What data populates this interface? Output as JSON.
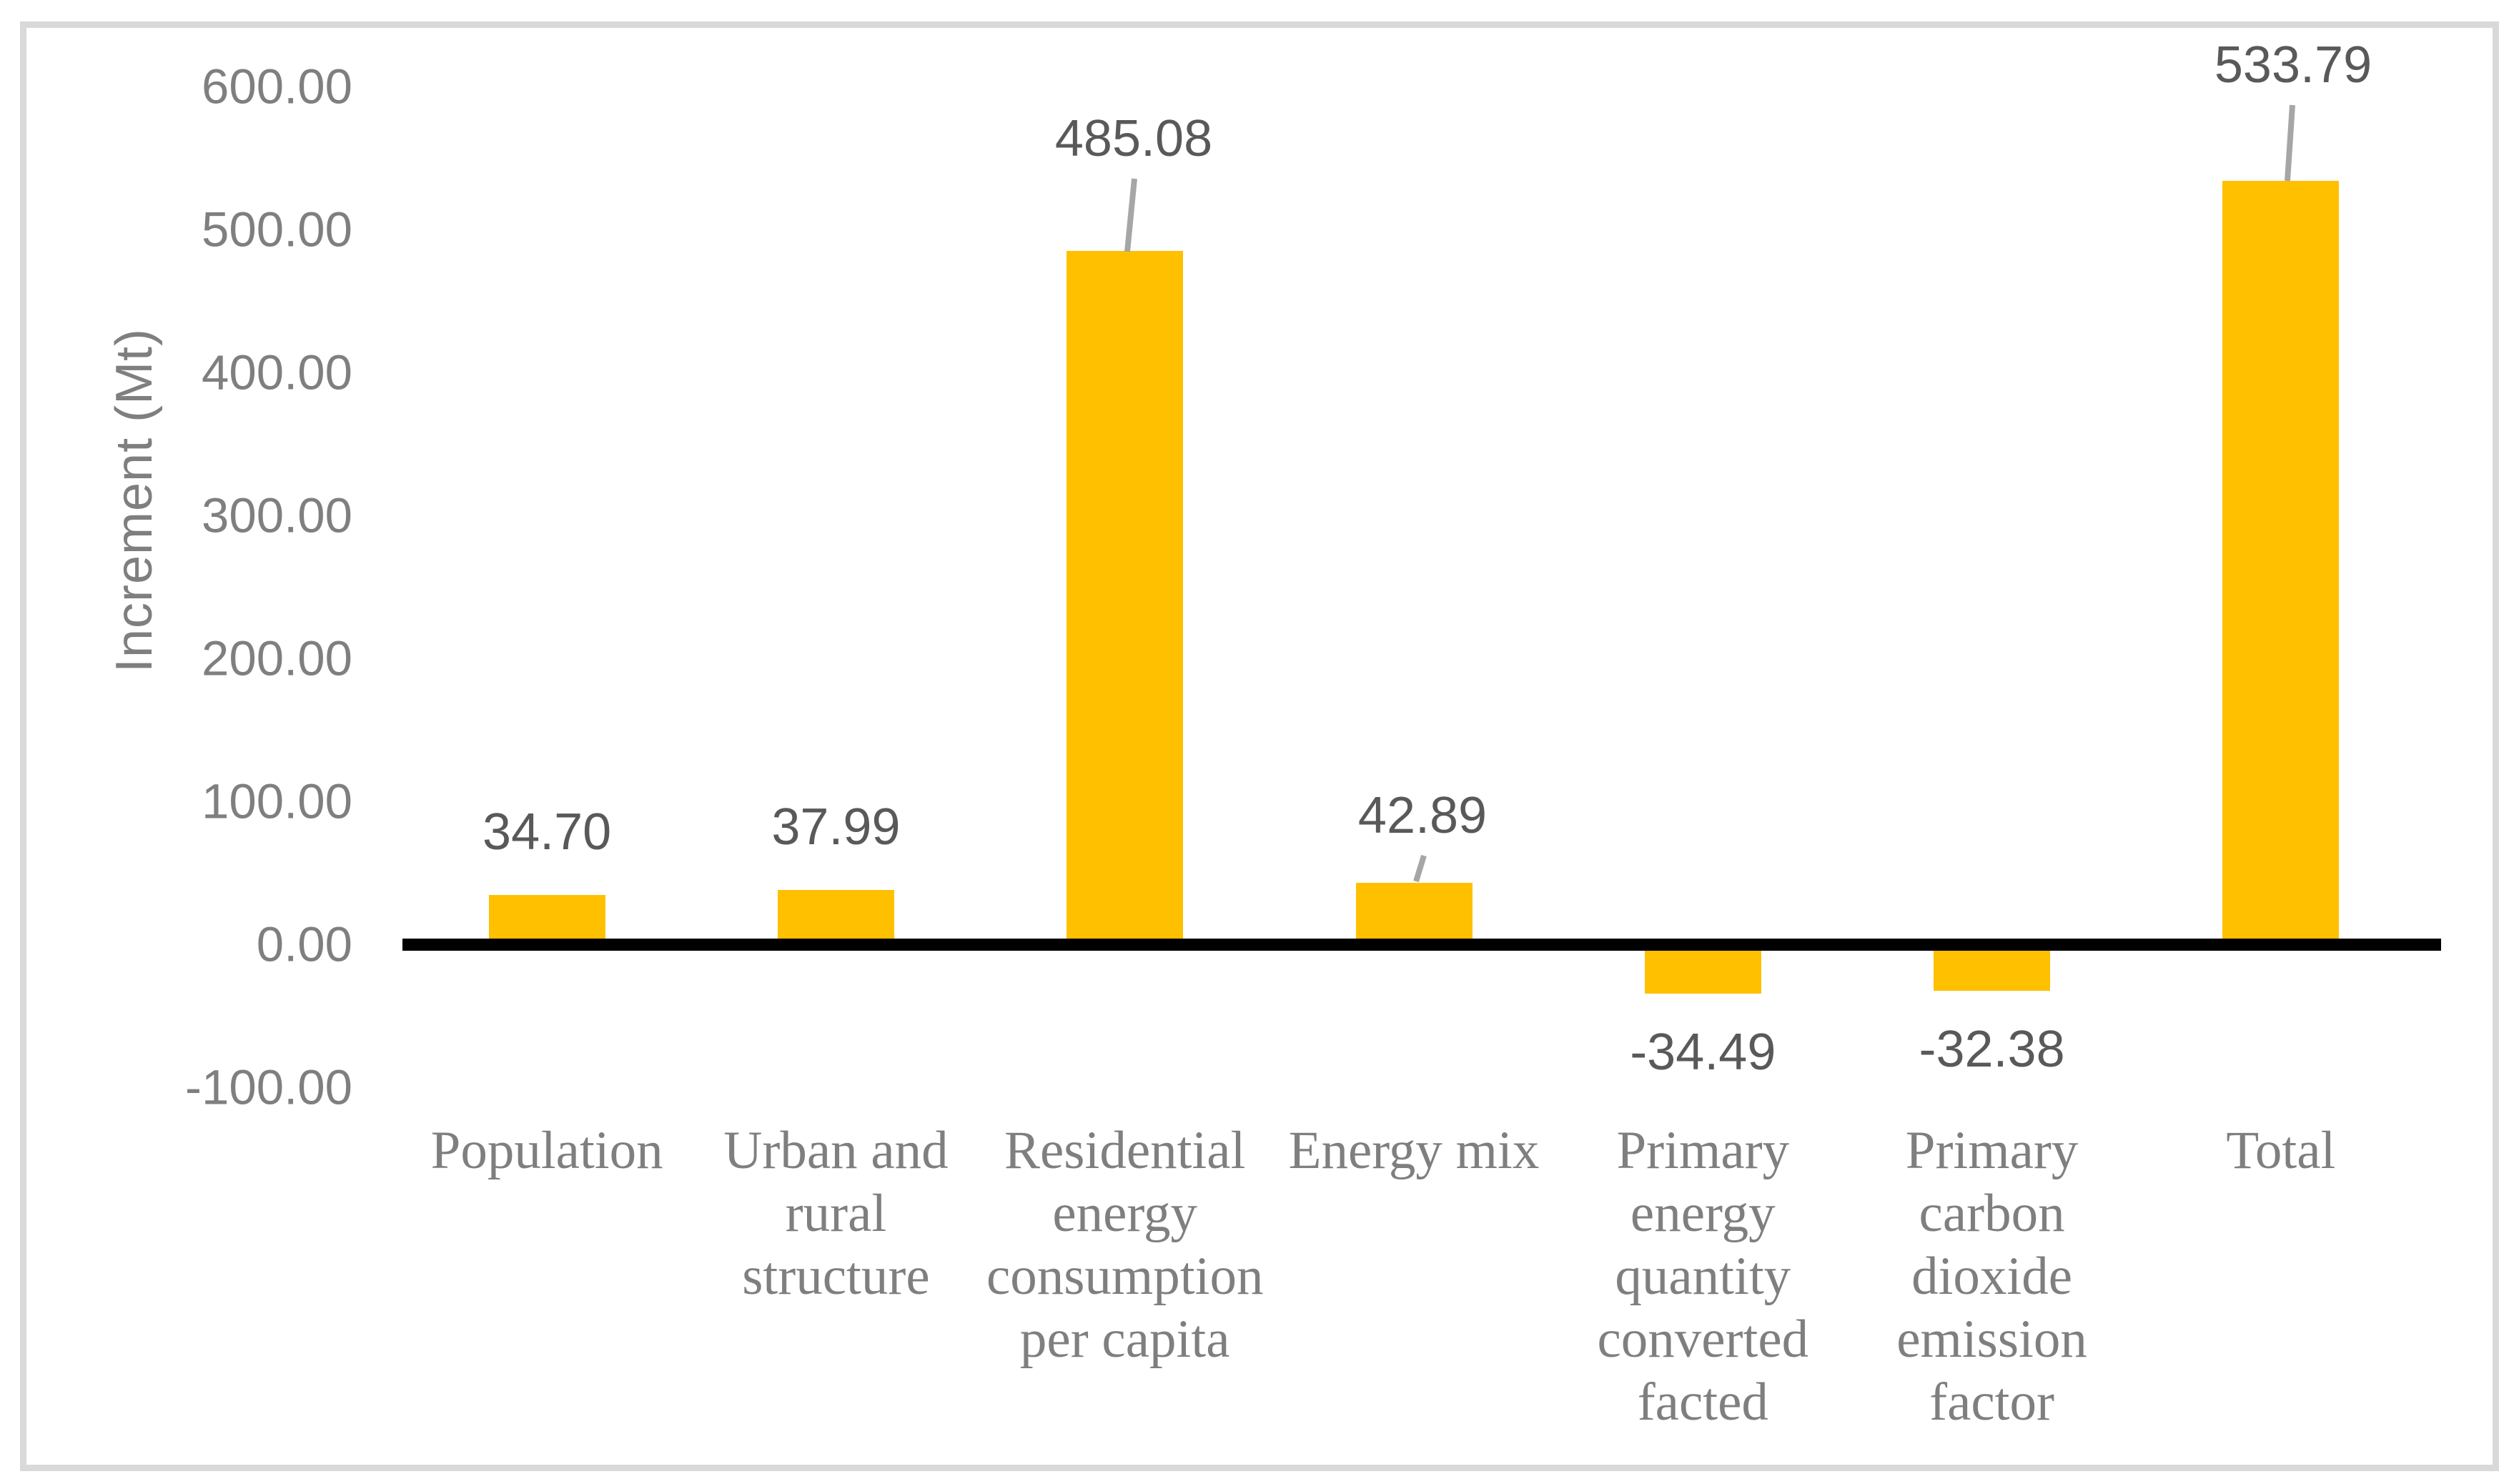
{
  "chart_data": {
    "type": "bar",
    "title": "",
    "xlabel": "",
    "ylabel": "Increment (Mt)",
    "categories": [
      "Population",
      "Urban and rural structure",
      "Residential energy consumption per capita",
      "Energy mix",
      "Primary energy quantity converted facted",
      "Primary carbon dioxide emission factor",
      "Total"
    ],
    "category_label_lines": [
      [
        "Population"
      ],
      [
        "Urban and",
        "rural",
        "structure"
      ],
      [
        "Residential",
        "energy",
        "consumption",
        "per capita"
      ],
      [
        "Energy mix"
      ],
      [
        "Primary",
        "energy",
        "quantity",
        "converted",
        "facted"
      ],
      [
        "Primary",
        "carbon",
        "dioxide",
        "emission",
        "factor"
      ],
      [
        "Total"
      ]
    ],
    "values": [
      34.7,
      37.99,
      485.08,
      42.89,
      -34.49,
      -32.38,
      533.79
    ],
    "data_labels": [
      "34.70",
      "37.99",
      "485.08",
      "42.89",
      "-34.49",
      "-32.38",
      "533.79"
    ],
    "y_ticks": [
      "600.00",
      "500.00",
      "400.00",
      "300.00",
      "200.00",
      "100.00",
      "0.00",
      "-100.00"
    ],
    "ylim": [
      -100,
      600
    ],
    "grid": false,
    "legend": false,
    "bar_color": "#FFC000",
    "colors": {
      "data_label": "#595959",
      "tick_label": "#7F7F7F",
      "category_label": "#7F7F7F",
      "axis_title": "#7F7F7F",
      "leader_line": "#A6A6A6",
      "zero_line": "#000000",
      "border": "#D9D9D9",
      "background": "#FFFFFF"
    }
  }
}
